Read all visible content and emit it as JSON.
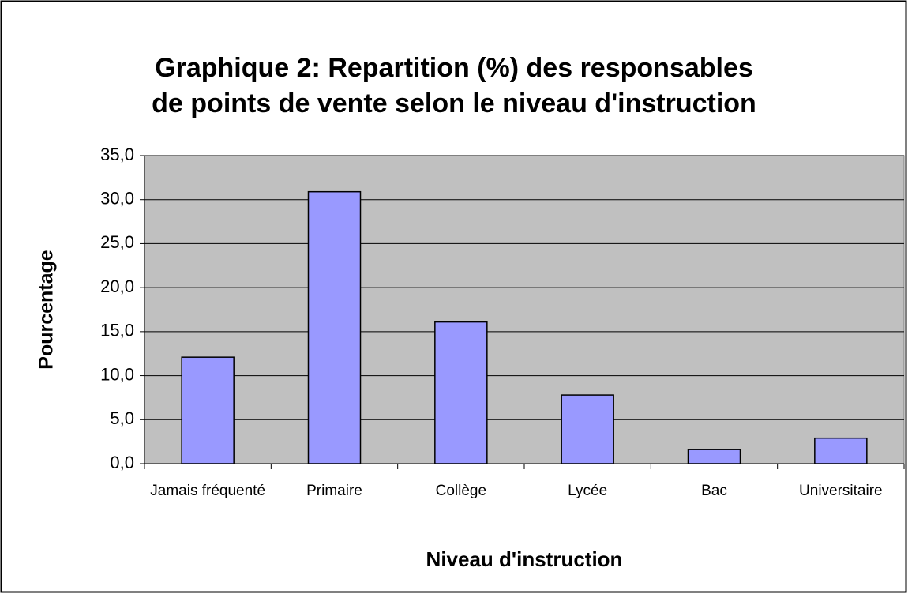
{
  "chart_data": {
    "type": "bar",
    "title": "Graphique 2: Repartition (%) des responsables de points de vente selon le niveau d'instruction",
    "x_label": "Niveau d'instruction",
    "y_label": "Pourcentage",
    "categories": [
      "Jamais fréquenté",
      "Primaire",
      "Collège",
      "Lycée",
      "Bac",
      "Universitaire"
    ],
    "values": [
      12.1,
      30.9,
      16.1,
      7.8,
      1.6,
      2.9
    ],
    "color": "#9999ff",
    "ylim": [
      0,
      35
    ],
    "yticks": [
      {
        "value": 0,
        "label": "0,0"
      },
      {
        "value": 5,
        "label": "5,0"
      },
      {
        "value": 10,
        "label": "10,0"
      },
      {
        "value": 15,
        "label": "15,0"
      },
      {
        "value": 20,
        "label": "20,0"
      },
      {
        "value": 25,
        "label": "25,0"
      },
      {
        "value": 30,
        "label": "30,0"
      },
      {
        "value": 35,
        "label": "35,0"
      }
    ],
    "grid": true
  }
}
